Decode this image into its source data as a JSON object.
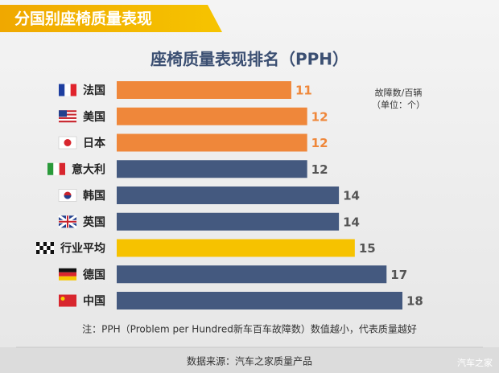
{
  "header": {
    "title": "分国别座椅质量表现"
  },
  "chart_data": {
    "type": "barh",
    "title": "座椅质量表现排名（PPH）",
    "unit_label": [
      "故障数/百辆",
      "（单位：个）"
    ],
    "categories": [
      "法国",
      "美国",
      "日本",
      "意大利",
      "韩国",
      "英国",
      "行业平均",
      "德国",
      "中国"
    ],
    "values": [
      11,
      12,
      12,
      12,
      14,
      14,
      15,
      17,
      18
    ],
    "colors": [
      "#ef873a",
      "#ef873a",
      "#ef873a",
      "#44597f",
      "#44597f",
      "#44597f",
      "#f6c200",
      "#44597f",
      "#44597f"
    ],
    "note": "注：PPH（Problem per Hundred新车百车故障数）数值越小，代表质量越好"
  },
  "footer": {
    "source": "数据来源：汽车之家质量产品",
    "watermark": "汽车之家"
  }
}
